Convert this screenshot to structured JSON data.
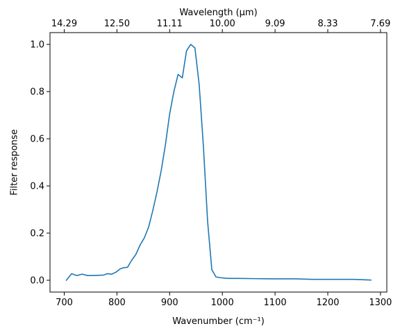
{
  "chart_data": {
    "type": "line",
    "xlabel": "Wavenumber (cm⁻¹)",
    "ylabel": "Filter response",
    "top_axis_label": "Wavelength (μm)",
    "xlim": [
      673,
      1312
    ],
    "ylim": [
      -0.05,
      1.05
    ],
    "x_ticks": [
      700,
      800,
      900,
      1000,
      1100,
      1200,
      1300
    ],
    "y_ticks": [
      0.0,
      0.2,
      0.4,
      0.6,
      0.8,
      1.0
    ],
    "y_tick_labels": [
      "0.0",
      "0.2",
      "0.4",
      "0.6",
      "0.8",
      "1.0"
    ],
    "top_ticks": [
      {
        "label": "14.29",
        "wavenumber": 700
      },
      {
        "label": "12.50",
        "wavenumber": 800
      },
      {
        "label": "11.11",
        "wavenumber": 900
      },
      {
        "label": "10.00",
        "wavenumber": 1000
      },
      {
        "label": "9.09",
        "wavenumber": 1100
      },
      {
        "label": "8.33",
        "wavenumber": 1200
      },
      {
        "label": "7.69",
        "wavenumber": 1300
      }
    ],
    "grid": false,
    "series": [
      {
        "color": "#1f77b4",
        "x": [
          704,
          714,
          724,
          734,
          744,
          754,
          764,
          774,
          782,
          790,
          798,
          806,
          812,
          820,
          828,
          836,
          844,
          852,
          860,
          868,
          876,
          884,
          892,
          900,
          908,
          916,
          924,
          932,
          940,
          948,
          956,
          964,
          972,
          980,
          988,
          996,
          1010,
          1030,
          1060,
          1100,
          1140,
          1170,
          1220,
          1250,
          1282
        ],
        "y": [
          0.0,
          0.028,
          0.02,
          0.026,
          0.02,
          0.02,
          0.021,
          0.022,
          0.028,
          0.026,
          0.034,
          0.048,
          0.053,
          0.055,
          0.085,
          0.11,
          0.15,
          0.18,
          0.225,
          0.295,
          0.375,
          0.465,
          0.575,
          0.705,
          0.8,
          0.873,
          0.858,
          0.973,
          1.0,
          0.985,
          0.83,
          0.57,
          0.25,
          0.045,
          0.014,
          0.011,
          0.008,
          0.008,
          0.007,
          0.006,
          0.006,
          0.004,
          0.004,
          0.004,
          0.001
        ]
      }
    ]
  }
}
